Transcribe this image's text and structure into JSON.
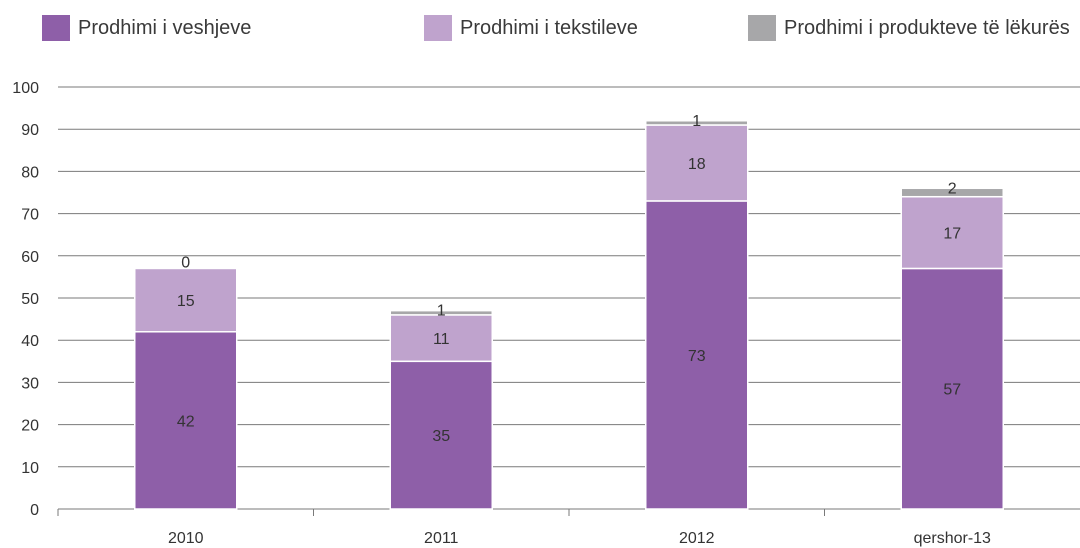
{
  "chart_data": {
    "type": "bar",
    "stacked": true,
    "categories": [
      "2010",
      "2011",
      "2012",
      "qershor-13"
    ],
    "series": [
      {
        "name": "Prodhimi i veshjeve",
        "values": [
          42,
          35,
          73,
          57
        ],
        "color": "#8e5fa8"
      },
      {
        "name": "Prodhimi i tekstileve",
        "values": [
          15,
          11,
          18,
          17
        ],
        "color": "#bfa3cd"
      },
      {
        "name": "Prodhimi i produkteve të lëkurës",
        "values": [
          0,
          1,
          1,
          2
        ],
        "color": "#a7a7a9"
      }
    ],
    "ylim": [
      0,
      100
    ],
    "yticks": [
      0,
      10,
      20,
      30,
      40,
      50,
      60,
      70,
      80,
      90,
      100
    ],
    "grid": true,
    "legend_position": "top"
  }
}
